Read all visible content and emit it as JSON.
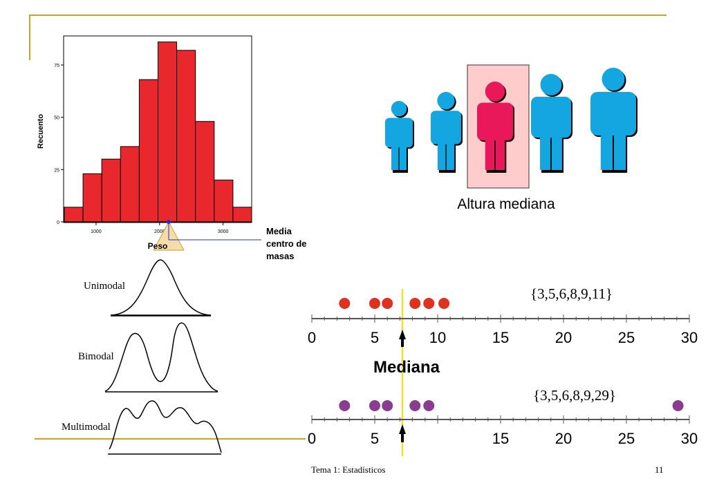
{
  "histogram": {
    "ylabel": "Recuento",
    "xlabel": "Peso",
    "yticks": [
      "0",
      "25",
      "50",
      "75"
    ],
    "xticks": [
      "1000",
      "2000",
      "3000"
    ],
    "bars": [
      7,
      23,
      30,
      36,
      68,
      86,
      82,
      48,
      20,
      7
    ],
    "bar_color": "#E8282C",
    "mean_label": [
      "Media",
      "centro de",
      "masas"
    ]
  },
  "heights": {
    "caption": "Altura mediana",
    "person_color": "#14A6E0",
    "median_color": "#E8185A",
    "highlight_bg": "#FFCCCC"
  },
  "modal": {
    "labels": [
      "Unimodal",
      "Bimodal",
      "Multimodal"
    ]
  },
  "median": {
    "title": "Mediana",
    "set1": "{3,5,6,8,9,11}",
    "set2": "{3,5,6,8,9,29}",
    "axis_ticks": [
      "0",
      "5",
      "10",
      "15",
      "20",
      "25",
      "30"
    ],
    "axis2_ticks": [
      "0",
      "5",
      "15",
      "20",
      "25",
      "30"
    ],
    "red_points": [
      2.6,
      5,
      6,
      8.2,
      9.3,
      10.5
    ],
    "purple_points": [
      2.6,
      5,
      6,
      8.2,
      9.3,
      29.1
    ],
    "red_color": "#E0301E",
    "purple_color": "#8A3C8E",
    "median_line_color": "#F2E022"
  },
  "footer": {
    "title": "Tema 1: Estadísticos",
    "page": "11"
  }
}
